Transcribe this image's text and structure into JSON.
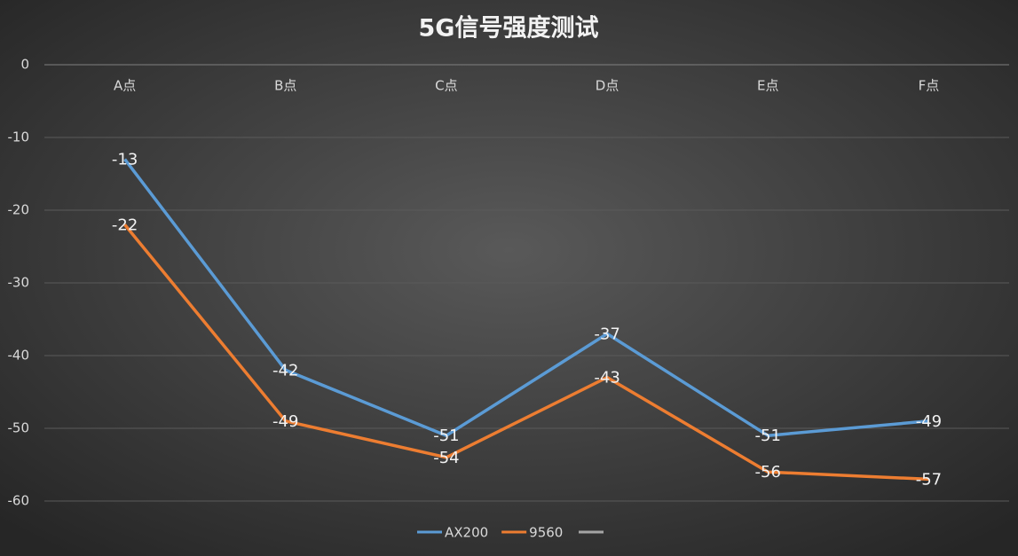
{
  "chart_data": {
    "type": "line",
    "title": "5G信号强度测试",
    "categories": [
      "A点",
      "B点",
      "C点",
      "D点",
      "E点",
      "F点"
    ],
    "series": [
      {
        "name": "AX200",
        "color": "#5b9bd5",
        "values": [
          -13,
          -42,
          -51,
          -37,
          -51,
          -49
        ]
      },
      {
        "name": "9560",
        "color": "#ed7d31",
        "values": [
          -22,
          -49,
          -54,
          -43,
          -56,
          -57
        ]
      }
    ],
    "ylim": [
      -60,
      0
    ],
    "yticks": [
      0,
      -10,
      -20,
      -30,
      -40,
      -50,
      -60
    ],
    "grid": true,
    "legend": "bottom"
  }
}
